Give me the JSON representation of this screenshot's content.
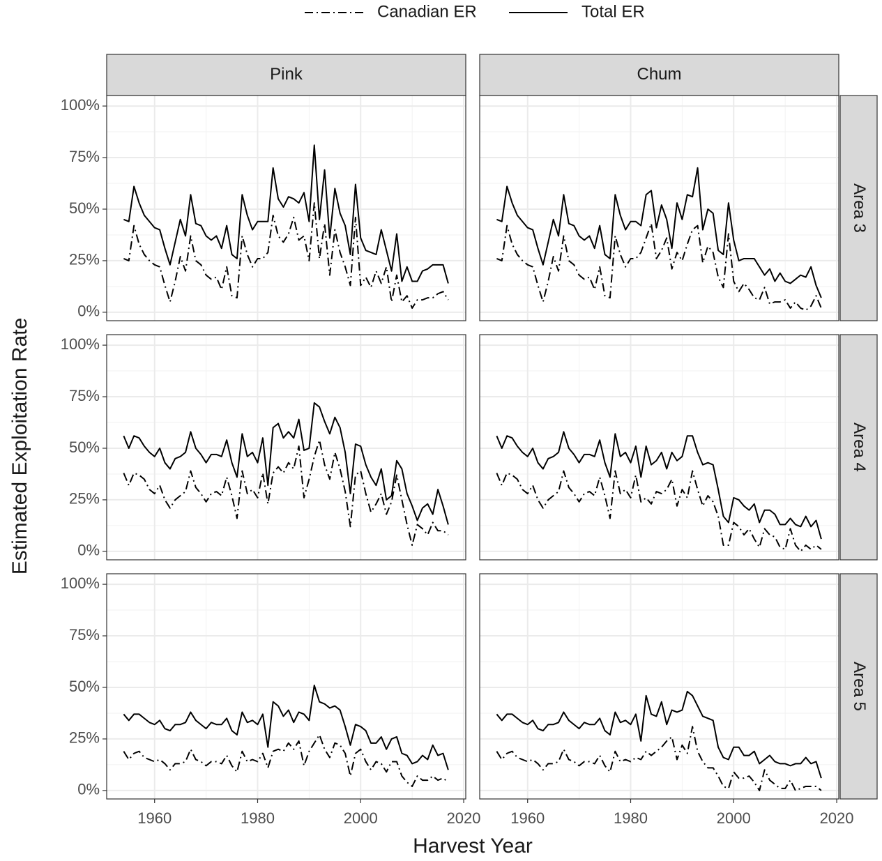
{
  "chart_data": {
    "type": "line",
    "x_label": "Harvest Year",
    "y_label": "Estimated Exploitation Rate",
    "columns": [
      "Pink",
      "Chum"
    ],
    "rows": [
      "Area 3",
      "Area 4",
      "Area 5"
    ],
    "grid": true,
    "legend": "top",
    "xlim": [
      1950.7,
      2020.4
    ],
    "ylim": [
      -4.1,
      105.1
    ],
    "xticks": [
      1960,
      1980,
      2000,
      2020
    ],
    "yticks": [
      {
        "value": 0,
        "label": "0%"
      },
      {
        "value": 25,
        "label": "25%"
      },
      {
        "value": 50,
        "label": "50%"
      },
      {
        "value": 75,
        "label": "75%"
      },
      {
        "value": 100,
        "label": "100%"
      }
    ],
    "series": [
      {
        "name": "Canadian ER",
        "color": "#000000",
        "dash": "dashdot"
      },
      {
        "name": "Total ER",
        "color": "#000000",
        "dash": "solid"
      }
    ],
    "x": [
      1954,
      1955,
      1956,
      1957,
      1958,
      1959,
      1960,
      1961,
      1962,
      1963,
      1964,
      1965,
      1966,
      1967,
      1968,
      1969,
      1970,
      1971,
      1972,
      1973,
      1974,
      1975,
      1976,
      1977,
      1978,
      1979,
      1980,
      1981,
      1982,
      1983,
      1984,
      1985,
      1986,
      1987,
      1988,
      1989,
      1990,
      1991,
      1992,
      1993,
      1994,
      1995,
      1996,
      1997,
      1998,
      1999,
      2000,
      2001,
      2002,
      2003,
      2004,
      2005,
      2006,
      2007,
      2008,
      2009,
      2010,
      2011,
      2012,
      2013,
      2014,
      2015,
      2016,
      2017
    ],
    "panels": [
      [
        {
          "series": [
            {
              "values": [
                26,
                25,
                42,
                33,
                28,
                25,
                23,
                22,
                13,
                5,
                15,
                27,
                20,
                37,
                25,
                23,
                18,
                16,
                17,
                11,
                22,
                8,
                7,
                37,
                28,
                22,
                26,
                26,
                29,
                47,
                37,
                34,
                38,
                46,
                35,
                37,
                25,
                53,
                26,
                43,
                18,
                40,
                29,
                22,
                13,
                46,
                13,
                17,
                12,
                20,
                14,
                22,
                5,
                18,
                5,
                8,
                2,
                6,
                6,
                7,
                7,
                9,
                10,
                6
              ]
            },
            {
              "values": [
                45,
                44,
                61,
                53,
                47,
                44,
                41,
                40,
                31,
                23,
                34,
                45,
                37,
                57,
                43,
                42,
                37,
                35,
                37,
                31,
                42,
                28,
                26,
                57,
                47,
                40,
                44,
                44,
                44,
                70,
                55,
                51,
                56,
                55,
                53,
                58,
                44,
                81,
                45,
                69,
                36,
                60,
                48,
                42,
                28,
                62,
                36,
                30,
                29,
                28,
                40,
                30,
                20,
                38,
                15,
                22,
                15,
                15,
                20,
                21,
                23,
                23,
                23,
                14
              ]
            }
          ]
        },
        {
          "series": [
            {
              "values": [
                26,
                25,
                42,
                33,
                28,
                25,
                23,
                22,
                13,
                5,
                15,
                27,
                20,
                37,
                25,
                23,
                18,
                16,
                17,
                11,
                22,
                8,
                7,
                37,
                28,
                22,
                26,
                26,
                29,
                36,
                43,
                26,
                30,
                36,
                21,
                29,
                25,
                33,
                40,
                42,
                24,
                32,
                29,
                17,
                12,
                38,
                15,
                10,
                14,
                11,
                7,
                6,
                12,
                4,
                5,
                5,
                6,
                2,
                5,
                2,
                1,
                3,
                8,
                2
              ]
            },
            {
              "values": [
                45,
                44,
                61,
                53,
                47,
                44,
                41,
                40,
                31,
                23,
                34,
                45,
                37,
                57,
                43,
                42,
                37,
                35,
                37,
                31,
                42,
                28,
                26,
                57,
                47,
                40,
                44,
                44,
                42,
                57,
                59,
                41,
                52,
                45,
                31,
                53,
                45,
                57,
                56,
                70,
                40,
                50,
                48,
                30,
                28,
                53,
                35,
                25,
                26,
                26,
                26,
                22,
                18,
                21,
                15,
                19,
                15,
                14,
                16,
                18,
                17,
                22,
                13,
                7
              ]
            }
          ]
        }
      ],
      [
        {
          "series": [
            {
              "values": [
                38,
                32,
                38,
                37,
                35,
                30,
                28,
                32,
                25,
                21,
                25,
                27,
                29,
                39,
                31,
                28,
                24,
                28,
                29,
                27,
                36,
                27,
                16,
                39,
                28,
                30,
                26,
                38,
                23,
                38,
                41,
                38,
                43,
                40,
                51,
                26,
                35,
                46,
                54,
                42,
                35,
                48,
                40,
                29,
                12,
                37,
                39,
                28,
                19,
                23,
                28,
                18,
                24,
                37,
                25,
                13,
                3,
                13,
                11,
                8,
                14,
                10,
                10,
                8
              ]
            },
            {
              "values": [
                56,
                50,
                56,
                55,
                51,
                48,
                46,
                50,
                43,
                40,
                45,
                46,
                48,
                58,
                50,
                47,
                43,
                47,
                47,
                46,
                54,
                43,
                36,
                57,
                46,
                48,
                43,
                55,
                32,
                60,
                62,
                55,
                58,
                55,
                64,
                49,
                50,
                72,
                70,
                63,
                57,
                65,
                60,
                48,
                28,
                52,
                51,
                42,
                36,
                32,
                40,
                25,
                27,
                44,
                40,
                28,
                22,
                15,
                21,
                23,
                18,
                30,
                22,
                13
              ]
            }
          ]
        },
        {
          "series": [
            {
              "values": [
                38,
                32,
                38,
                37,
                35,
                30,
                28,
                32,
                25,
                21,
                25,
                27,
                29,
                39,
                31,
                28,
                24,
                28,
                29,
                27,
                36,
                27,
                16,
                39,
                28,
                30,
                26,
                37,
                24,
                26,
                23,
                29,
                28,
                30,
                35,
                22,
                30,
                26,
                39,
                30,
                22,
                27,
                24,
                17,
                3,
                3,
                14,
                12,
                8,
                11,
                6,
                2,
                11,
                8,
                7,
                2,
                1,
                11,
                3,
                0,
                3,
                1,
                3,
                1
              ]
            },
            {
              "values": [
                56,
                50,
                56,
                55,
                51,
                48,
                46,
                50,
                43,
                40,
                45,
                46,
                48,
                58,
                50,
                47,
                43,
                47,
                47,
                46,
                54,
                43,
                36,
                57,
                46,
                48,
                43,
                51,
                36,
                51,
                42,
                44,
                48,
                40,
                48,
                44,
                46,
                56,
                56,
                48,
                42,
                43,
                42,
                30,
                17,
                14,
                26,
                25,
                22,
                20,
                23,
                14,
                20,
                20,
                18,
                13,
                13,
                16,
                13,
                12,
                17,
                12,
                15,
                6
              ]
            }
          ]
        }
      ],
      [
        {
          "series": [
            {
              "values": [
                19,
                15,
                18,
                19,
                16,
                15,
                14,
                15,
                13,
                10,
                13,
                13,
                14,
                20,
                15,
                14,
                12,
                14,
                14,
                13,
                17,
                12,
                9,
                19,
                14,
                15,
                14,
                18,
                11,
                19,
                20,
                19,
                23,
                20,
                24,
                12,
                19,
                23,
                27,
                20,
                16,
                23,
                22,
                18,
                7,
                18,
                20,
                14,
                10,
                14,
                13,
                9,
                14,
                14,
                7,
                4,
                2,
                7,
                5,
                5,
                7,
                5,
                6,
                4
              ]
            },
            {
              "values": [
                37,
                34,
                37,
                37,
                35,
                33,
                32,
                34,
                30,
                29,
                32,
                32,
                33,
                38,
                34,
                32,
                30,
                33,
                32,
                32,
                35,
                29,
                27,
                38,
                33,
                34,
                32,
                37,
                21,
                43,
                41,
                36,
                39,
                33,
                38,
                37,
                34,
                51,
                43,
                42,
                40,
                41,
                39,
                31,
                22,
                32,
                31,
                29,
                23,
                23,
                26,
                20,
                25,
                26,
                18,
                17,
                13,
                14,
                17,
                15,
                22,
                17,
                18,
                10
              ]
            }
          ]
        },
        {
          "series": [
            {
              "values": [
                19,
                15,
                18,
                19,
                16,
                15,
                14,
                15,
                13,
                10,
                13,
                13,
                14,
                20,
                15,
                14,
                12,
                14,
                14,
                13,
                17,
                12,
                9,
                19,
                14,
                15,
                14,
                16,
                15,
                19,
                17,
                19,
                21,
                24,
                26,
                15,
                22,
                18,
                31,
                19,
                14,
                11,
                11,
                7,
                2,
                1,
                9,
                6,
                6,
                7,
                4,
                0,
                10,
                5,
                3,
                1,
                1,
                5,
                0,
                1,
                2,
                2,
                2,
                0
              ]
            },
            {
              "values": [
                37,
                34,
                37,
                37,
                35,
                33,
                32,
                34,
                30,
                29,
                32,
                32,
                33,
                38,
                34,
                32,
                30,
                33,
                32,
                32,
                35,
                29,
                27,
                38,
                33,
                34,
                32,
                37,
                24,
                46,
                37,
                36,
                43,
                32,
                39,
                38,
                39,
                48,
                46,
                41,
                36,
                35,
                34,
                21,
                16,
                15,
                21,
                21,
                17,
                17,
                19,
                13,
                15,
                17,
                14,
                13,
                13,
                12,
                13,
                13,
                16,
                13,
                14,
                6
              ]
            }
          ]
        }
      ]
    ]
  }
}
